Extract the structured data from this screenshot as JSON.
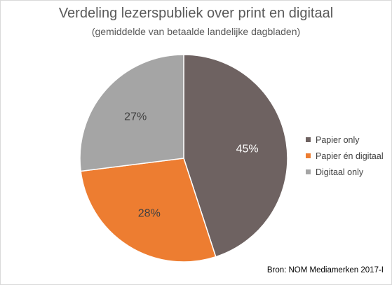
{
  "chart_data": {
    "type": "pie",
    "title": "Verdeling lezerspubliek over print en digitaal",
    "subtitle": "(gemiddelde van betaalde landelijke dagbladen)",
    "slices": [
      {
        "label": "Papier only",
        "value": 45,
        "display": "45%",
        "color": "#6e6261",
        "label_color": "#ffffff"
      },
      {
        "label": "Papier én digitaal",
        "value": 28,
        "display": "28%",
        "color": "#ed7d31",
        "label_color": "#404040"
      },
      {
        "label": "Digitaal only",
        "value": 27,
        "display": "27%",
        "color": "#a5a5a5",
        "label_color": "#404040"
      }
    ],
    "legend_position": "right",
    "source": "Bron: NOM Mediamerken 2017-I"
  }
}
